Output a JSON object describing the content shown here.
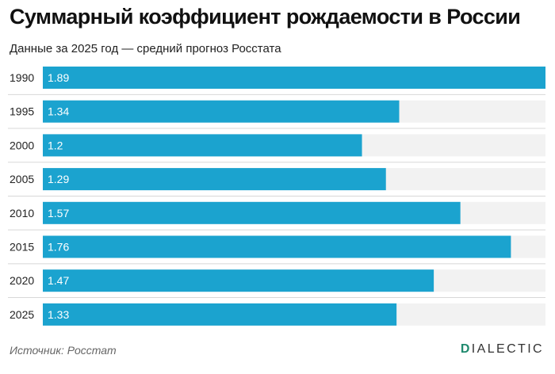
{
  "header": {
    "title": "Суммарный коэффициент рождаемости в России",
    "subtitle": "Данные за 2025 год — средний прогноз Росстата"
  },
  "footer": {
    "source": "Источник: Росстат",
    "brand_initial": "D",
    "brand_rest": "IALECTIC"
  },
  "colors": {
    "bar": "#1ba3cf",
    "track": "#f2f2f2",
    "separator": "#d8d8d8",
    "label": "#222222",
    "value_label": "#ffffff"
  },
  "chart_data": {
    "type": "bar",
    "orientation": "horizontal",
    "categories": [
      "1990",
      "1995",
      "2000",
      "2005",
      "2010",
      "2015",
      "2020",
      "2025"
    ],
    "values": [
      1.89,
      1.34,
      1.2,
      1.29,
      1.57,
      1.76,
      1.47,
      1.33
    ],
    "value_labels": [
      "1.89",
      "1.34",
      "1.2",
      "1.29",
      "1.57",
      "1.76",
      "1.47",
      "1.33"
    ],
    "title": "Суммарный коэффициент рождаемости в России",
    "xlim": [
      0,
      1.89
    ]
  }
}
